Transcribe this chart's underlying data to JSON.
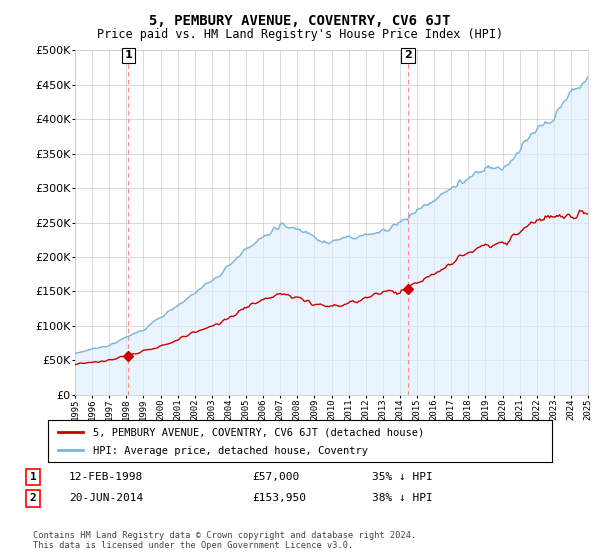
{
  "title": "5, PEMBURY AVENUE, COVENTRY, CV6 6JT",
  "subtitle": "Price paid vs. HM Land Registry's House Price Index (HPI)",
  "x_start_year": 1995,
  "x_end_year": 2025,
  "y_min": 0,
  "y_max": 500000,
  "y_ticks": [
    0,
    50000,
    100000,
    150000,
    200000,
    250000,
    300000,
    350000,
    400000,
    450000,
    500000
  ],
  "sale1_year": 1998.12,
  "sale1_price": 57000,
  "sale1_label": "1",
  "sale1_date": "12-FEB-1998",
  "sale1_pct": "35% ↓ HPI",
  "sale2_year": 2014.47,
  "sale2_price": 153950,
  "sale2_label": "2",
  "sale2_date": "20-JUN-2014",
  "sale2_pct": "38% ↓ HPI",
  "hpi_color": "#7ab4d8",
  "hpi_fill_color": "#ddeeff",
  "price_color": "#cc0000",
  "dashed_line_color": "#ff8888",
  "background_color": "#ffffff",
  "grid_color": "#cccccc",
  "legend_label_price": "5, PEMBURY AVENUE, COVENTRY, CV6 6JT (detached house)",
  "legend_label_hpi": "HPI: Average price, detached house, Coventry",
  "footer": "Contains HM Land Registry data © Crown copyright and database right 2024.\nThis data is licensed under the Open Government Licence v3.0."
}
